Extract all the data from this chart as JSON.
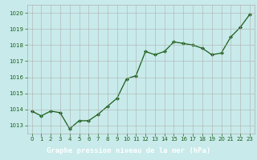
{
  "x": [
    0,
    1,
    2,
    3,
    4,
    5,
    6,
    7,
    8,
    9,
    10,
    11,
    12,
    13,
    14,
    15,
    16,
    17,
    18,
    19,
    20,
    21,
    22,
    23
  ],
  "y": [
    1013.9,
    1013.6,
    1013.9,
    1013.8,
    1012.8,
    1013.3,
    1013.3,
    1013.7,
    1014.2,
    1014.7,
    1015.9,
    1016.1,
    1017.6,
    1017.4,
    1017.6,
    1018.2,
    1018.1,
    1018.0,
    1017.8,
    1017.4,
    1017.5,
    1018.5,
    1019.1,
    1019.9
  ],
  "ylim": [
    1012.5,
    1020.5
  ],
  "xlim": [
    -0.5,
    23.5
  ],
  "yticks": [
    1013,
    1014,
    1015,
    1016,
    1017,
    1018,
    1019,
    1020
  ],
  "xticks": [
    0,
    1,
    2,
    3,
    4,
    5,
    6,
    7,
    8,
    9,
    10,
    11,
    12,
    13,
    14,
    15,
    16,
    17,
    18,
    19,
    20,
    21,
    22,
    23
  ],
  "line_color": "#1a5e1a",
  "marker_color": "#1a5e1a",
  "bg_color": "#c8eaea",
  "grid_color": "#b0b0b0",
  "xlabel": "Graphe pression niveau de la mer (hPa)",
  "xlabel_color": "#ffffff",
  "xlabel_bg": "#2d6b2d",
  "tick_label_color": "#1a5e1a",
  "tick_fontsize": 5,
  "ylabel_fontsize": 5,
  "xlabel_fontsize": 6.5
}
